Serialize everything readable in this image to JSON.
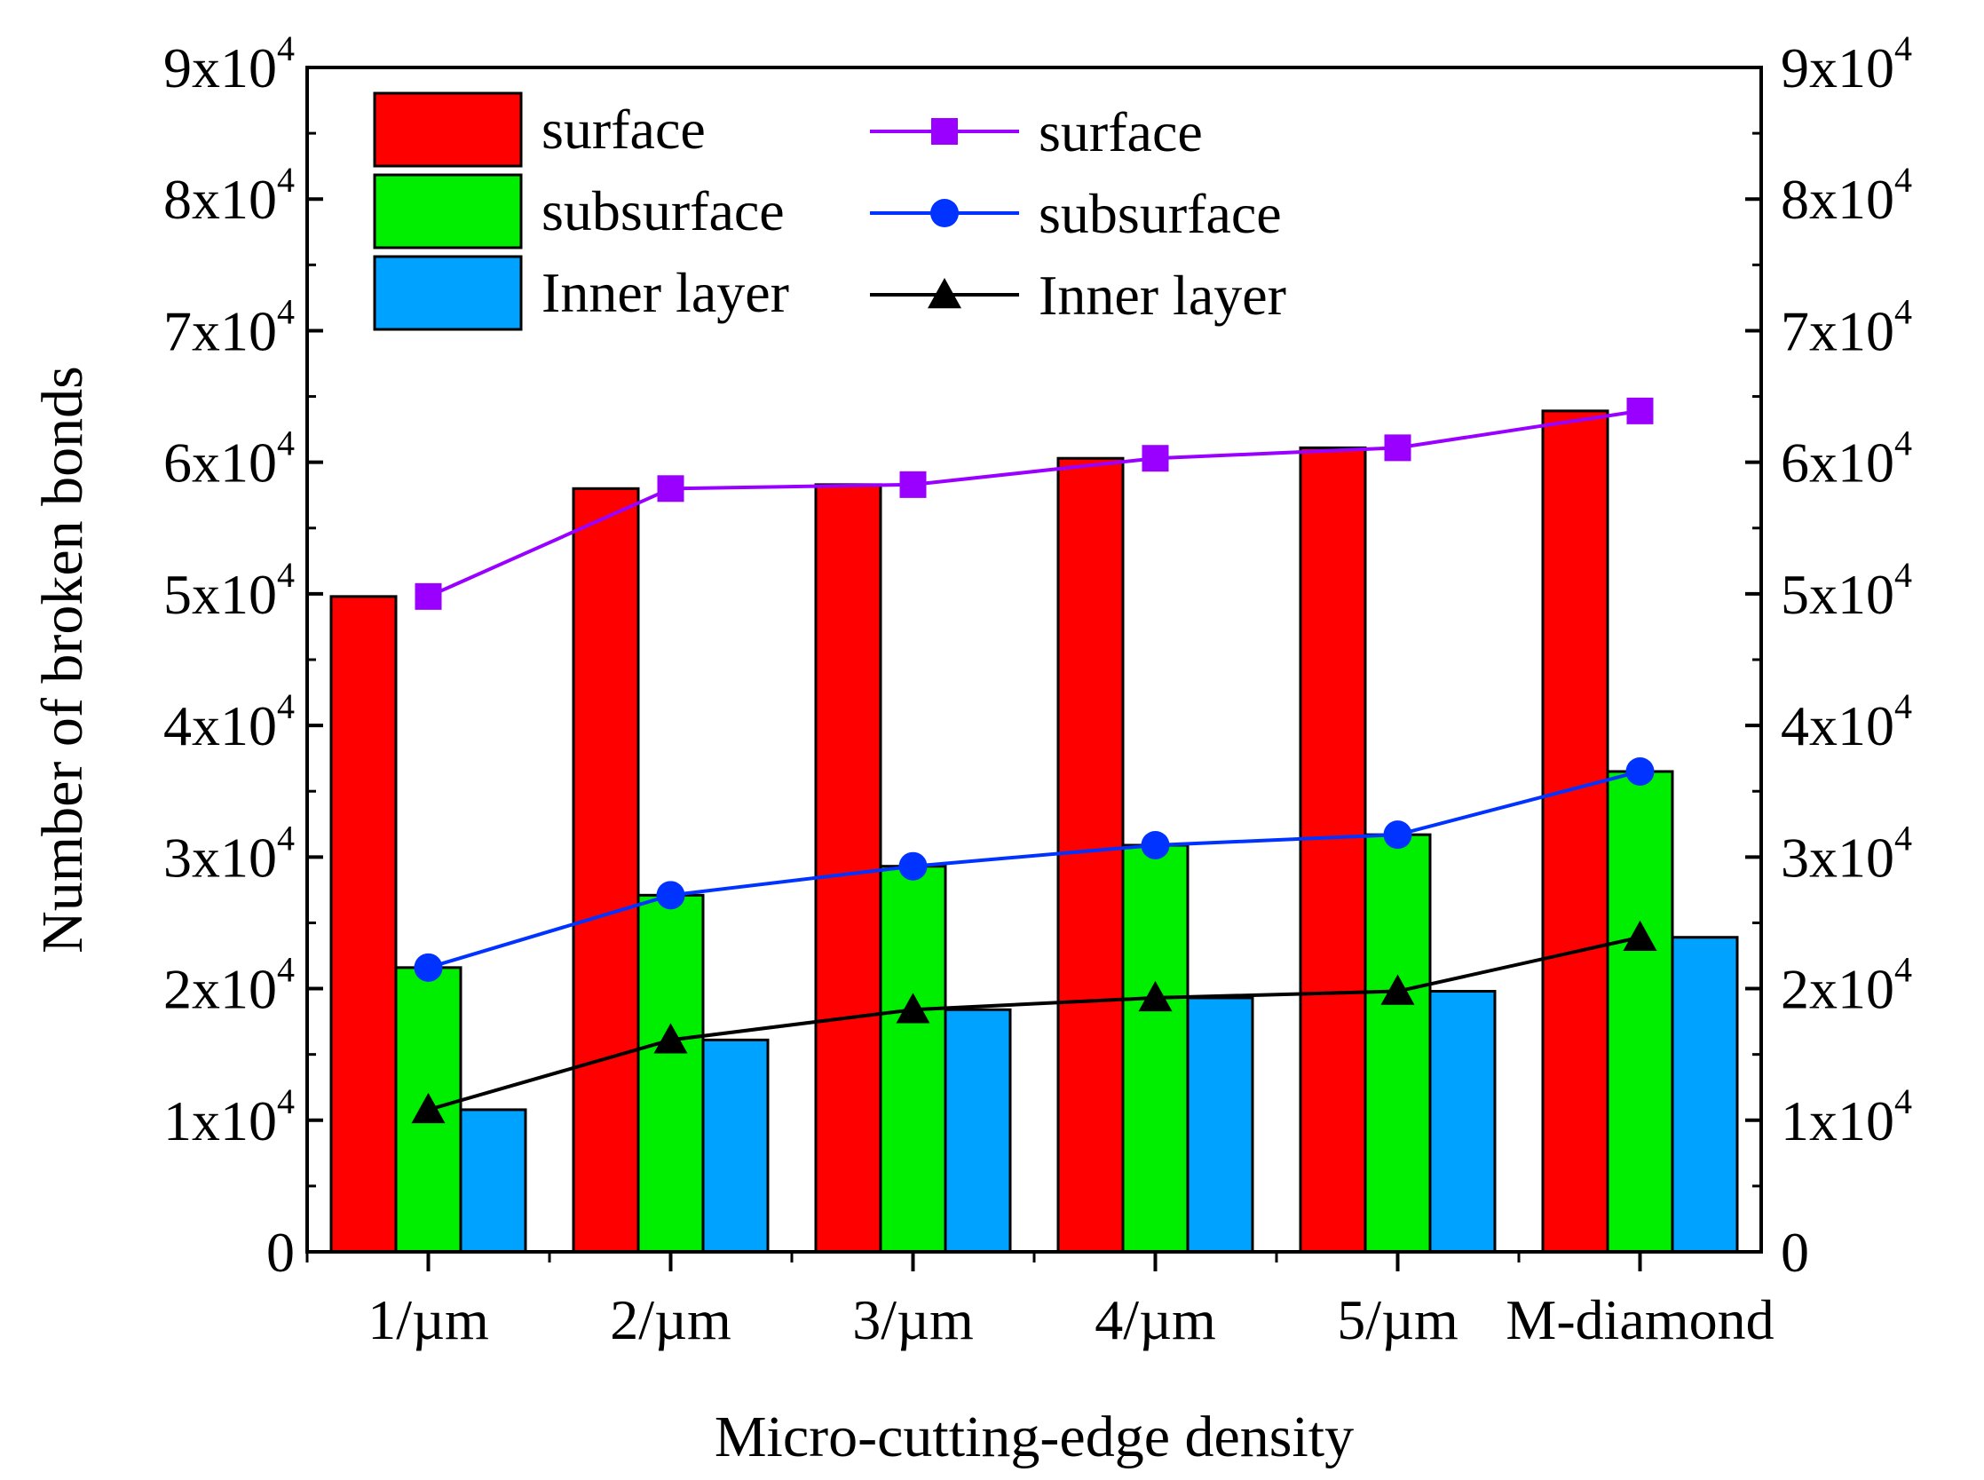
{
  "chart_data": {
    "type": "bar",
    "xlabel": "Micro-cutting-edge density",
    "ylabel": "Number of broken bonds",
    "categories": [
      "1/µm",
      "2/µm",
      "3/µm",
      "4/µm",
      "5/µm",
      "M-diamond"
    ],
    "ylim": [
      0,
      90000
    ],
    "y_ticks": [
      0,
      10000,
      20000,
      30000,
      40000,
      50000,
      60000,
      70000,
      80000,
      90000
    ],
    "y_tick_labels": [
      {
        "mantissa": "0",
        "exp": ""
      },
      {
        "mantissa": "1x10",
        "exp": "4"
      },
      {
        "mantissa": "2x10",
        "exp": "4"
      },
      {
        "mantissa": "3x10",
        "exp": "4"
      },
      {
        "mantissa": "4x10",
        "exp": "4"
      },
      {
        "mantissa": "5x10",
        "exp": "4"
      },
      {
        "mantissa": "6x10",
        "exp": "4"
      },
      {
        "mantissa": "7x10",
        "exp": "4"
      },
      {
        "mantissa": "8x10",
        "exp": "4"
      },
      {
        "mantissa": "9x10",
        "exp": "4"
      }
    ],
    "right_axis": true,
    "grid": false,
    "legend_position": "top-left",
    "bar_series": [
      {
        "name": "surface",
        "color": "#ff0000",
        "values": [
          49800,
          58000,
          58300,
          60300,
          61100,
          63900
        ]
      },
      {
        "name": "subsurface",
        "color": "#00ee00",
        "values": [
          21600,
          27100,
          29300,
          30900,
          31700,
          36500
        ]
      },
      {
        "name": "Inner layer",
        "color": "#00a2ff",
        "values": [
          10800,
          16100,
          18400,
          19300,
          19800,
          23900
        ]
      }
    ],
    "line_series": [
      {
        "name": "surface",
        "color": "#9900ff",
        "marker": "square",
        "values": [
          49800,
          58000,
          58300,
          60300,
          61100,
          63900
        ]
      },
      {
        "name": "subsurface",
        "color": "#0033ff",
        "marker": "circle",
        "values": [
          21600,
          27100,
          29300,
          30900,
          31700,
          36500
        ]
      },
      {
        "name": "Inner layer",
        "color": "#000000",
        "marker": "triangle",
        "values": [
          10800,
          16100,
          18400,
          19300,
          19800,
          23900
        ]
      }
    ]
  }
}
